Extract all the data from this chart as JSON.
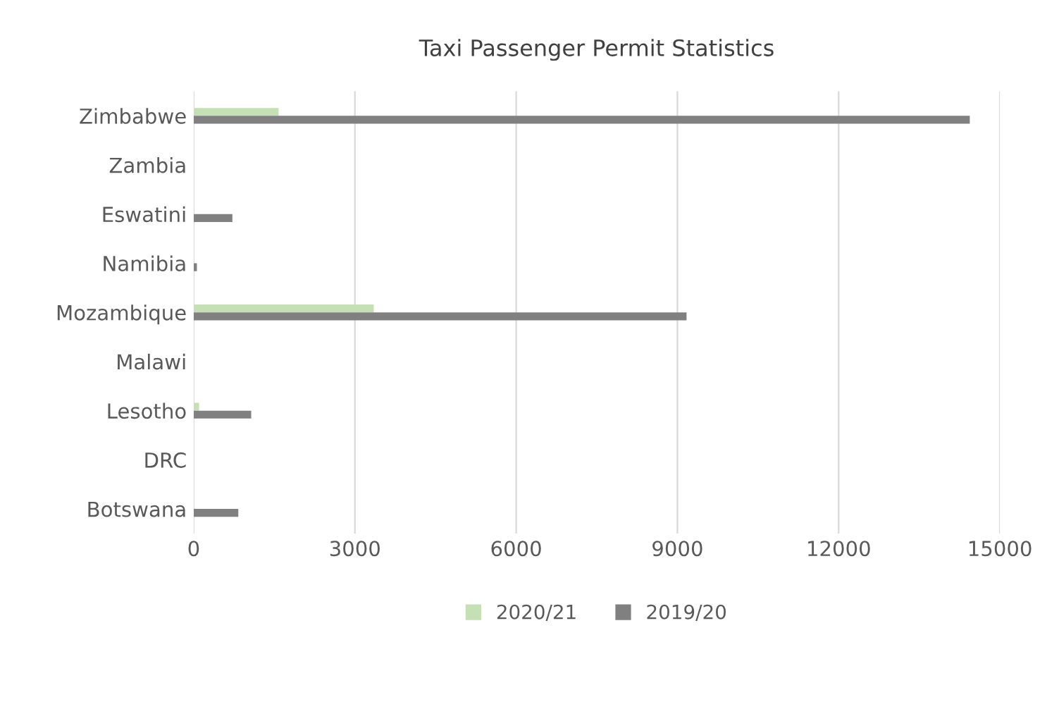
{
  "chart_data": {
    "type": "bar",
    "orientation": "horizontal",
    "title": "Taxi Passenger Permit Statistics",
    "categories": [
      "Zimbabwe",
      "Zambia",
      "Eswatini",
      "Namibia",
      "Mozambique",
      "Malawi",
      "Lesotho",
      "DRC",
      "Botswana"
    ],
    "series": [
      {
        "name": "2020/21",
        "color": "#c5e0b4",
        "values": [
          1580,
          null,
          null,
          null,
          3350,
          null,
          100,
          null,
          null
        ]
      },
      {
        "name": "2019/20",
        "color": "#808080",
        "values": [
          14440,
          null,
          720,
          60,
          9170,
          null,
          1070,
          null,
          830
        ]
      }
    ],
    "xlim": [
      0,
      15000
    ],
    "xticks": [
      0,
      3000,
      6000,
      9000,
      12000,
      15000
    ],
    "grid": "x",
    "legend": "bottom"
  }
}
